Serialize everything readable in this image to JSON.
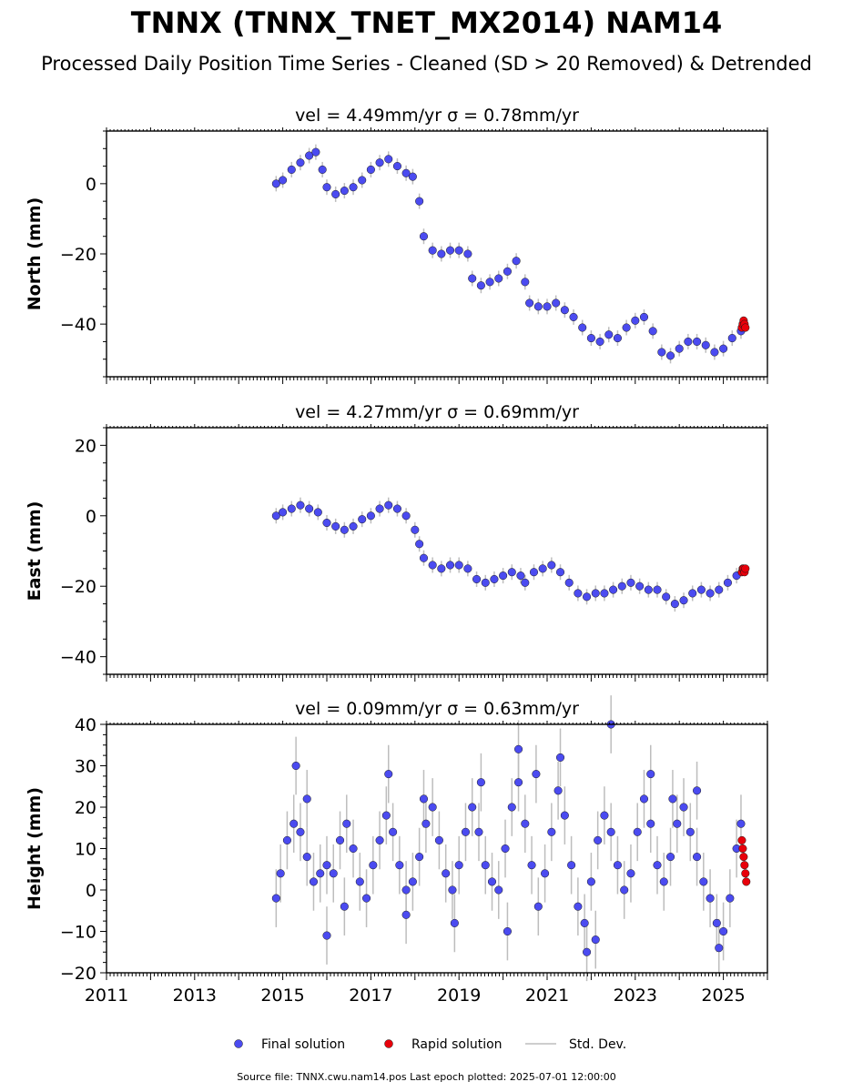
{
  "title": "TNNX (TNNX_TNET_MX2014) NAM14",
  "subtitle": "Processed Daily Position Time Series - Cleaned (SD > 20 Removed) & Detrended",
  "footer": "Source file: TNNX.cwu.nam14.pos  Last epoch plotted: 2025-07-01 12:00:00",
  "legend": {
    "final": "Final solution",
    "rapid": "Rapid solution",
    "std": "Std. Dev."
  },
  "colors": {
    "final": "#4b4bf0",
    "rapid": "#e8000b",
    "std": "#bdbdbd",
    "marker_edge": "#1a1a1a"
  },
  "chart_data": [
    {
      "type": "scatter",
      "title": "vel = 4.49mm/yr   σ = 0.78mm/yr",
      "ylabel": "North (mm)",
      "xlim": [
        2011,
        2026
      ],
      "ylim": [
        -55,
        15
      ],
      "yticks": [
        0,
        -20,
        -40
      ],
      "xticks": [],
      "series": [
        {
          "name": "Final solution",
          "x": [
            2014.85,
            2015.0,
            2015.2,
            2015.4,
            2015.6,
            2015.75,
            2015.9,
            2016.0,
            2016.2,
            2016.4,
            2016.6,
            2016.8,
            2017.0,
            2017.2,
            2017.4,
            2017.6,
            2017.8,
            2017.95,
            2018.1,
            2018.2,
            2018.4,
            2018.6,
            2018.8,
            2019.0,
            2019.2,
            2019.3,
            2019.5,
            2019.7,
            2019.9,
            2020.1,
            2020.3,
            2020.5,
            2020.6,
            2020.8,
            2021.0,
            2021.2,
            2021.4,
            2021.6,
            2021.8,
            2022.0,
            2022.2,
            2022.4,
            2022.6,
            2022.8,
            2023.0,
            2023.2,
            2023.4,
            2023.6,
            2023.8,
            2024.0,
            2024.2,
            2024.4,
            2024.6,
            2024.8,
            2025.0,
            2025.2,
            2025.4
          ],
          "y": [
            0,
            1,
            4,
            6,
            8,
            9,
            4,
            -1,
            -3,
            -2,
            -1,
            1,
            4,
            6,
            7,
            5,
            3,
            2,
            -5,
            -15,
            -19,
            -20,
            -19,
            -19,
            -20,
            -27,
            -29,
            -28,
            -27,
            -25,
            -22,
            -28,
            -34,
            -35,
            -35,
            -34,
            -36,
            -38,
            -41,
            -44,
            -45,
            -43,
            -44,
            -41,
            -39,
            -38,
            -42,
            -48,
            -49,
            -47,
            -45,
            -45,
            -46,
            -48,
            -47,
            -44,
            -42
          ]
        },
        {
          "name": "Rapid solution",
          "x": [
            2025.42,
            2025.44,
            2025.46,
            2025.48,
            2025.5
          ],
          "y": [
            -41,
            -40,
            -39,
            -40,
            -41
          ]
        }
      ]
    },
    {
      "type": "scatter",
      "title": "vel = 4.27mm/yr   σ = 0.69mm/yr",
      "ylabel": "East (mm)",
      "xlim": [
        2011,
        2026
      ],
      "ylim": [
        -45,
        25
      ],
      "yticks": [
        20,
        0,
        -20,
        -40
      ],
      "xticks": [],
      "series": [
        {
          "name": "Final solution",
          "x": [
            2014.85,
            2015.0,
            2015.2,
            2015.4,
            2015.6,
            2015.8,
            2016.0,
            2016.2,
            2016.4,
            2016.6,
            2016.8,
            2017.0,
            2017.2,
            2017.4,
            2017.6,
            2017.8,
            2018.0,
            2018.1,
            2018.2,
            2018.4,
            2018.6,
            2018.8,
            2019.0,
            2019.2,
            2019.4,
            2019.6,
            2019.8,
            2020.0,
            2020.2,
            2020.4,
            2020.5,
            2020.7,
            2020.9,
            2021.1,
            2021.3,
            2021.5,
            2021.7,
            2021.9,
            2022.1,
            2022.3,
            2022.5,
            2022.7,
            2022.9,
            2023.1,
            2023.3,
            2023.5,
            2023.7,
            2023.9,
            2024.1,
            2024.3,
            2024.5,
            2024.7,
            2024.9,
            2025.1,
            2025.3
          ],
          "y": [
            0,
            1,
            2,
            3,
            2,
            1,
            -2,
            -3,
            -4,
            -3,
            -1,
            0,
            2,
            3,
            2,
            0,
            -4,
            -8,
            -12,
            -14,
            -15,
            -14,
            -14,
            -15,
            -18,
            -19,
            -18,
            -17,
            -16,
            -17,
            -19,
            -16,
            -15,
            -14,
            -16,
            -19,
            -22,
            -23,
            -22,
            -22,
            -21,
            -20,
            -19,
            -20,
            -21,
            -21,
            -23,
            -25,
            -24,
            -22,
            -21,
            -22,
            -21,
            -19,
            -17
          ]
        },
        {
          "name": "Rapid solution",
          "x": [
            2025.42,
            2025.44,
            2025.46,
            2025.48,
            2025.5
          ],
          "y": [
            -16,
            -15,
            -15,
            -16,
            -15
          ]
        }
      ]
    },
    {
      "type": "scatter",
      "title": "vel = 0.09mm/yr   σ = 0.63mm/yr",
      "ylabel": "Height (mm)",
      "xlim": [
        2011,
        2026
      ],
      "ylim": [
        -20,
        40
      ],
      "yticks": [
        40,
        30,
        20,
        10,
        0,
        -10,
        -20
      ],
      "xticks": [
        2011,
        2013,
        2015,
        2017,
        2019,
        2021,
        2023,
        2025
      ],
      "series": [
        {
          "name": "Final solution",
          "x": [
            2014.85,
            2014.95,
            2015.1,
            2015.25,
            2015.4,
            2015.55,
            2015.7,
            2015.85,
            2016.0,
            2016.15,
            2016.3,
            2016.45,
            2016.6,
            2016.75,
            2016.9,
            2017.05,
            2017.2,
            2017.35,
            2017.5,
            2017.65,
            2017.8,
            2017.95,
            2018.1,
            2018.25,
            2018.4,
            2018.55,
            2018.7,
            2018.85,
            2019.0,
            2019.15,
            2019.3,
            2019.45,
            2019.6,
            2019.75,
            2019.9,
            2020.05,
            2020.2,
            2020.35,
            2020.5,
            2020.65,
            2020.8,
            2020.95,
            2021.1,
            2021.25,
            2021.4,
            2021.55,
            2021.7,
            2021.85,
            2022.0,
            2022.15,
            2022.3,
            2022.45,
            2022.6,
            2022.75,
            2022.9,
            2023.05,
            2023.2,
            2023.35,
            2023.5,
            2023.65,
            2023.8,
            2023.95,
            2024.1,
            2024.25,
            2024.4,
            2024.55,
            2024.7,
            2024.85,
            2025.0,
            2025.15,
            2025.3,
            2025.4,
            2015.3,
            2015.55,
            2016.4,
            2017.4,
            2018.2,
            2019.5,
            2020.35,
            2020.75,
            2021.3,
            2021.9,
            2022.45,
            2022.1,
            2023.35,
            2023.85,
            2024.4,
            2024.9,
            2016.0,
            2017.8,
            2018.9,
            2020.1
          ],
          "y": [
            -2,
            4,
            12,
            16,
            14,
            8,
            2,
            4,
            6,
            4,
            12,
            16,
            10,
            2,
            -2,
            6,
            12,
            18,
            14,
            6,
            0,
            2,
            8,
            16,
            20,
            12,
            4,
            0,
            6,
            14,
            20,
            14,
            6,
            2,
            0,
            10,
            20,
            26,
            16,
            6,
            -4,
            4,
            14,
            24,
            18,
            6,
            -4,
            -8,
            2,
            12,
            18,
            14,
            6,
            0,
            4,
            14,
            22,
            16,
            6,
            2,
            8,
            16,
            20,
            14,
            8,
            2,
            -2,
            -8,
            -10,
            -2,
            10,
            16,
            30,
            22,
            -4,
            28,
            22,
            26,
            34,
            28,
            32,
            -15,
            40,
            -12,
            28,
            22,
            24,
            -14,
            -11,
            -6,
            -8,
            -10
          ]
        },
        {
          "name": "Rapid solution",
          "x": [
            2025.42,
            2025.44,
            2025.46,
            2025.48,
            2025.5,
            2025.52
          ],
          "y": [
            12,
            10,
            8,
            6,
            4,
            2
          ]
        }
      ]
    }
  ]
}
